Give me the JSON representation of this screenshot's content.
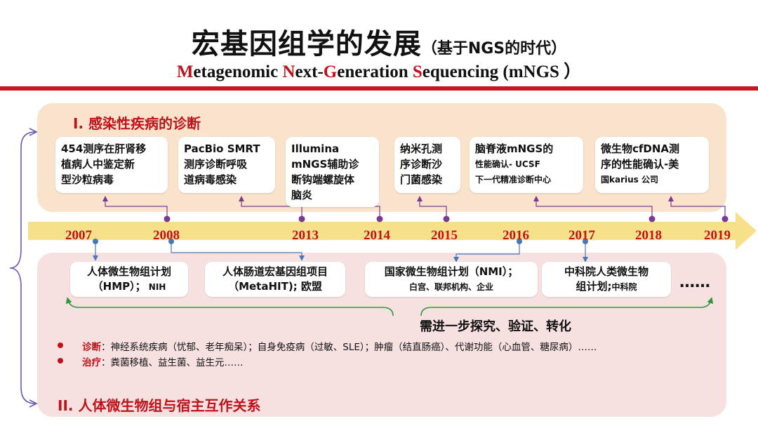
{
  "title": {
    "main": "宏基因组学的发展",
    "sub": "（基于NGS的时代）"
  },
  "subtitle": {
    "parts": [
      {
        "cap": "M",
        "rest": "etagenomic "
      },
      {
        "cap": "N",
        "rest": "ext-"
      },
      {
        "cap": "G",
        "rest": "eneration "
      },
      {
        "cap": "S",
        "rest": "equencing (mNGS ）"
      }
    ]
  },
  "section1": {
    "heading": "I. 感染性疾病的诊断"
  },
  "section2": {
    "heading": "II. 人体微生物组与宿主互作关系"
  },
  "years": [
    "2007",
    "2008",
    "2013",
    "2014",
    "2015",
    "2016",
    "2017",
    "2018",
    "2019"
  ],
  "top_events": [
    {
      "line1": "454测序在肝肾移",
      "line2": "植病人中鉴定新",
      "line3": "型沙粒病毒",
      "line4": ""
    },
    {
      "line1": "PacBio SMRT",
      "line2": "测序诊断呼吸",
      "line3": "道病毒感染",
      "line4": ""
    },
    {
      "line1": "Illumina",
      "line2": "mNGS辅助诊",
      "line3": "断钩端螺旋体",
      "line4": "脑炎"
    },
    {
      "line1": "纳米孔测",
      "line2": "序诊断沙",
      "line3": "门菌感染",
      "line4": ""
    },
    {
      "line1": "脑脊液mNGS的",
      "line2": "性能确认- UCSF",
      "line3": "下一代精准诊断中心",
      "line4": ""
    },
    {
      "line1": "微生物cfDNA测",
      "line2": "序的性能确认-美",
      "line3": "国karius 公司",
      "line4": ""
    }
  ],
  "bottom_events": [
    {
      "line1": "人体微生物组计划",
      "line2a": "（HMP）；",
      "line2b": " NIH"
    },
    {
      "line1": "人体肠道宏基因组项目",
      "line2a": "（MetaHIT); 欧盟",
      "line2b": ""
    },
    {
      "line1": "国家微生物组计划（NMI）；",
      "line2a": "",
      "line2b": "白宫、联邦机构、企业"
    },
    {
      "line1": "中科院人类微生物",
      "line2a": "组计划;",
      "line2b": "中科院"
    }
  ],
  "ellipsis": "……",
  "needs": "需进一步探究、验证、转化",
  "bullets": [
    {
      "label": "诊断",
      "text": "：神经系统疾病（忧郁、老年痴呆）；自身免疫病（过敏、SLE）；肿瘤（结直肠癌）、代谢功能（心血管、糖尿病）……"
    },
    {
      "label": "治疗",
      "text": "：粪菌移植、益生菌、益生元……"
    }
  ],
  "colors": {
    "accent_red": "#c0121b",
    "timeline": "#f7e08a",
    "connector_purple": "#7a3b8f",
    "connector_blue": "#4a78b5",
    "green_arc": "#2e9a3a",
    "brace": "#6a5bb0"
  }
}
